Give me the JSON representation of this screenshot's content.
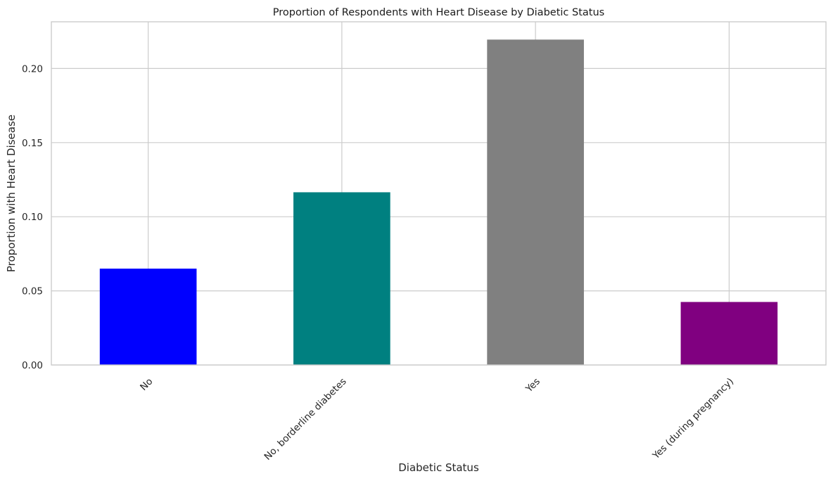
{
  "chart_data": {
    "type": "bar",
    "title": "Proportion of Respondents with Heart Disease by Diabetic Status",
    "xlabel": "Diabetic Status",
    "ylabel": "Proportion with Heart Disease",
    "categories": [
      "No",
      "No, borderline diabetes",
      "Yes",
      "Yes (during pregnancy)"
    ],
    "values": [
      0.065,
      0.1165,
      0.2195,
      0.0425
    ],
    "colors": [
      "#0000ff",
      "#008080",
      "#808080",
      "#800080"
    ],
    "ylim": [
      0,
      0.2315
    ],
    "yticks": [
      0.0,
      0.05,
      0.1,
      0.15,
      0.2
    ],
    "ytick_labels": [
      "0.00",
      "0.05",
      "0.10",
      "0.15",
      "0.20"
    ],
    "grid": true,
    "legend": "none"
  }
}
